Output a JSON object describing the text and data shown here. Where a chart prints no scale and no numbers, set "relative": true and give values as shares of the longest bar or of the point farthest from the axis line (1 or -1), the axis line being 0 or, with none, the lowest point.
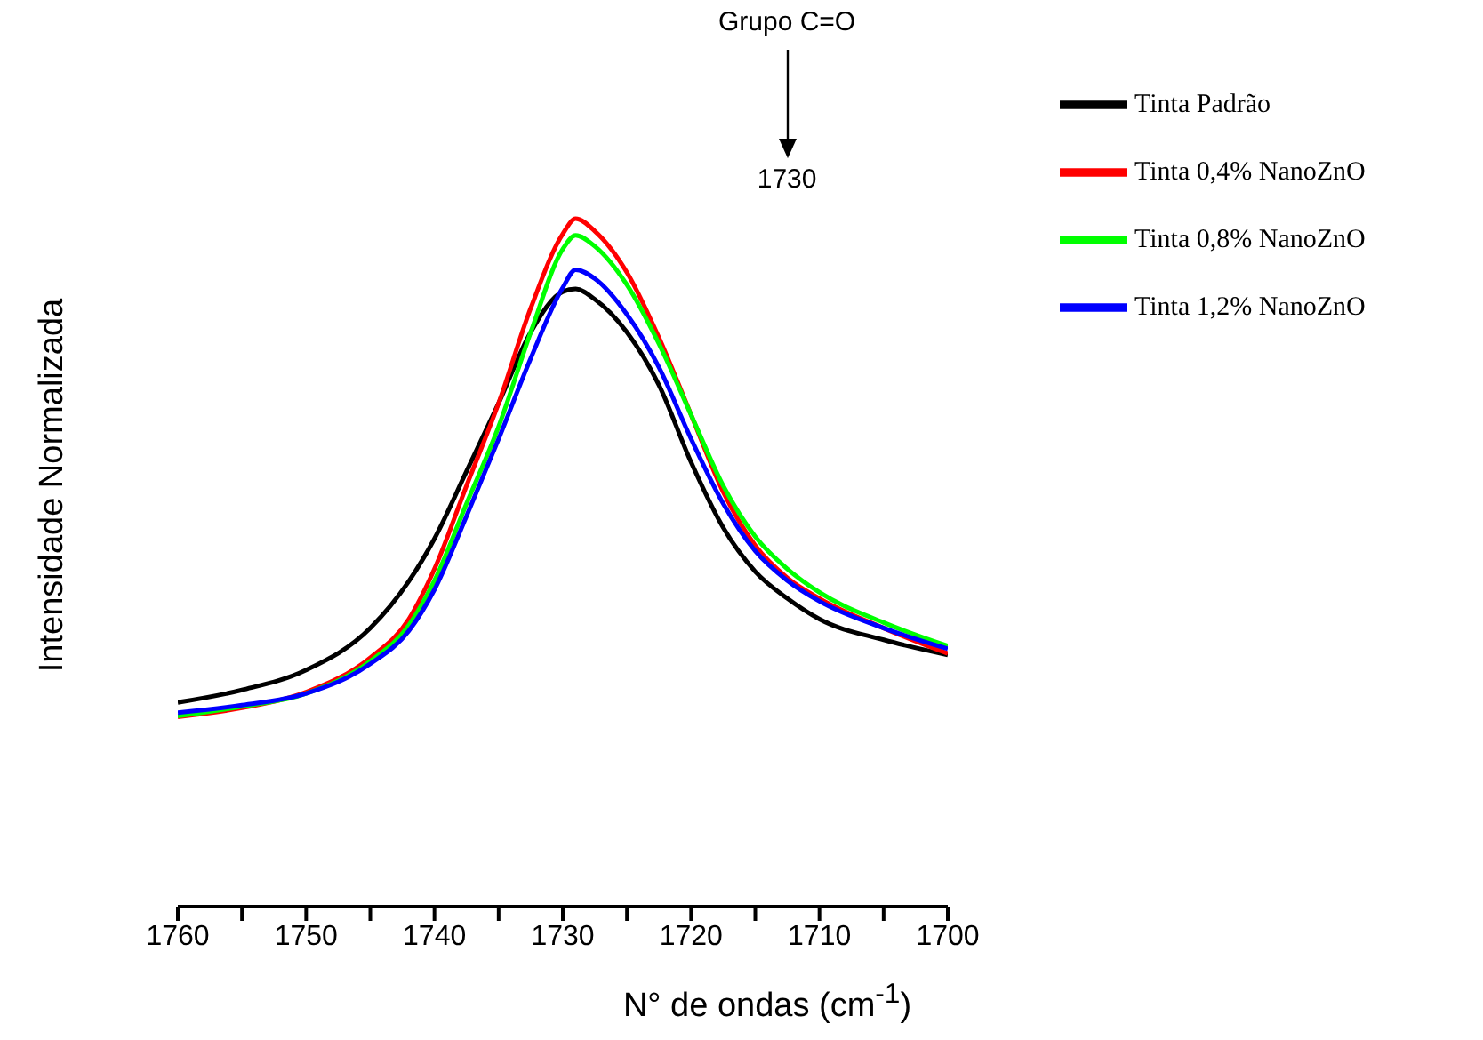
{
  "chart_data": {
    "type": "line",
    "relative": true,
    "xlabel": "N° de ondas (cm$^{-1}$)",
    "ylabel": "Intensidade Normalizada",
    "annotations": [
      "Grupo C=O",
      "1730"
    ],
    "x": [
      1760,
      1755,
      1750,
      1745,
      1742,
      1740,
      1737.5,
      1735,
      1732.5,
      1730,
      1729,
      1727.5,
      1725,
      1722.5,
      1720,
      1717.5,
      1715,
      1712.5,
      1710,
      1705,
      1700
    ],
    "xlim": [
      1760,
      1700
    ],
    "xticks": [
      1760,
      {
        "value": 1755,
        "label": null
      },
      1750,
      {
        "value": 1745,
        "label": null
      },
      1740,
      {
        "value": 1735,
        "label": null
      },
      1730,
      {
        "value": 1725,
        "label": null
      },
      1720,
      {
        "value": 1715,
        "label": null
      },
      1710,
      {
        "value": 1705,
        "label": null
      },
      1700
    ],
    "legend": "top right",
    "marker": "none",
    "line_style": "solid",
    "series": [
      {
        "name": "Tinta Padrão",
        "color": "#000000",
        "values": [
          0.297,
          0.315,
          0.344,
          0.405,
          0.473,
          0.535,
          0.633,
          0.732,
          0.835,
          0.894,
          0.898,
          0.883,
          0.835,
          0.758,
          0.646,
          0.551,
          0.487,
          0.448,
          0.418,
          0.388,
          0.366
        ]
      },
      {
        "name": "Tinta 0,4% NanoZnO",
        "color": "#ff0000",
        "values": [
          0.276,
          0.289,
          0.312,
          0.362,
          0.418,
          0.491,
          0.612,
          0.732,
          0.87,
          0.978,
          1,
          0.982,
          0.922,
          0.827,
          0.715,
          0.603,
          0.525,
          0.478,
          0.448,
          0.405,
          0.368
        ]
      },
      {
        "name": "Tinta 0,8% NanoZnO",
        "color": "#00ff00",
        "values": [
          0.277,
          0.291,
          0.31,
          0.357,
          0.409,
          0.474,
          0.586,
          0.698,
          0.835,
          0.956,
          0.976,
          0.96,
          0.904,
          0.818,
          0.715,
          0.612,
          0.538,
          0.491,
          0.457,
          0.413,
          0.379
        ]
      },
      {
        "name": "Tinta 1,2% NanoZnO",
        "color": "#0000ff",
        "values": [
          0.282,
          0.293,
          0.31,
          0.353,
          0.401,
          0.461,
          0.568,
          0.68,
          0.797,
          0.9,
          0.926,
          0.913,
          0.861,
          0.784,
          0.68,
          0.586,
          0.517,
          0.474,
          0.444,
          0.405,
          0.375
        ]
      }
    ]
  }
}
